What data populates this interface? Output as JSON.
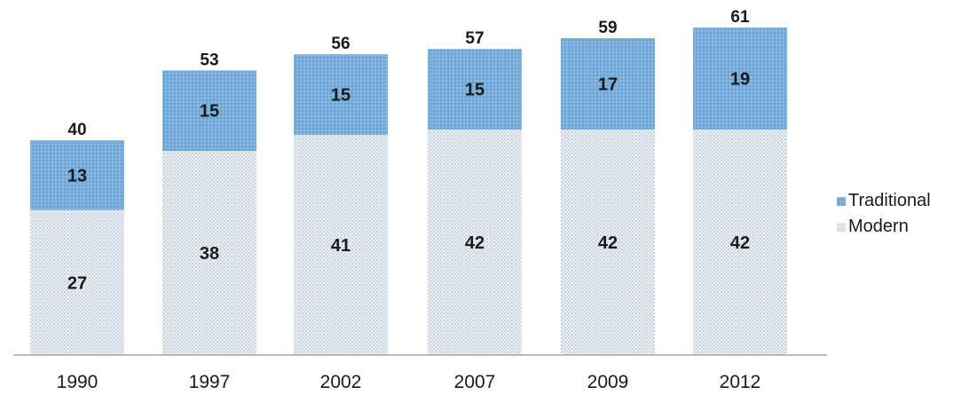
{
  "chart_data": {
    "type": "bar",
    "stacked": true,
    "categories": [
      "1990",
      "1997",
      "2002",
      "2007",
      "2009",
      "2012"
    ],
    "series": [
      {
        "name": "Modern",
        "values": [
          27,
          38,
          41,
          42,
          42,
          42
        ],
        "color": "#e2e8ef",
        "pattern": "dotted"
      },
      {
        "name": "Traditional",
        "values": [
          13,
          15,
          15,
          15,
          17,
          19
        ],
        "color": "#75a9d6"
      }
    ],
    "totals": [
      40,
      53,
      56,
      57,
      59,
      61
    ],
    "ylim": [
      0,
      64
    ],
    "grid": false,
    "legend_position": "right",
    "legend_order": [
      "Traditional",
      "Modern"
    ]
  }
}
